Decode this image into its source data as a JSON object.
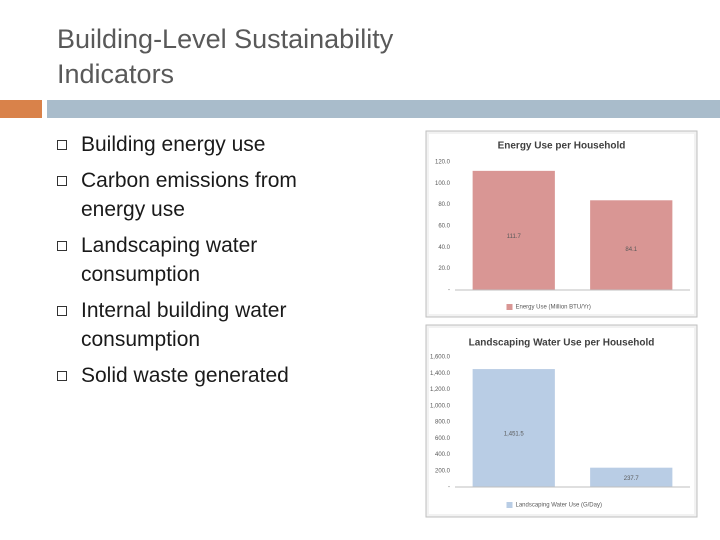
{
  "slide": {
    "title": "Building-Level Sustainability Indicators",
    "bullets": [
      "Building energy use",
      "Carbon emissions from energy use",
      "Landscaping water consumption",
      "Internal building water consumption",
      "Solid waste generated"
    ]
  },
  "chart_data": [
    {
      "type": "bar",
      "title": "Energy Use  per Household",
      "categories": [
        null,
        null
      ],
      "series": [
        {
          "name": "Energy Use (Million BTU/Yr)",
          "color": "#d99694",
          "values": [
            111.7,
            84.1
          ],
          "value_labels": [
            "111.7",
            "84.1"
          ]
        }
      ],
      "ylim": [
        0,
        120
      ],
      "yticks": [
        {
          "value": 0,
          "label": "-"
        },
        {
          "value": 20,
          "label": "20.0"
        },
        {
          "value": 40,
          "label": "40.0"
        },
        {
          "value": 60,
          "label": "60.0"
        },
        {
          "value": 80,
          "label": "80.0"
        },
        {
          "value": 100,
          "label": "100.0"
        },
        {
          "value": 120,
          "label": "120.0"
        }
      ],
      "grid": false,
      "legend": "bottom"
    },
    {
      "type": "bar",
      "title": "Landscaping Water Use per Household",
      "categories": [
        null,
        null
      ],
      "series": [
        {
          "name": "Landscaping Water Use (G/Day)",
          "color": "#b9cde5",
          "values": [
            1451.5,
            237.7
          ],
          "value_labels": [
            "1,451.5",
            "237.7"
          ]
        }
      ],
      "ylim": [
        0,
        1600
      ],
      "yticks": [
        {
          "value": 0,
          "label": "-"
        },
        {
          "value": 200,
          "label": "200.0"
        },
        {
          "value": 400,
          "label": "400.0"
        },
        {
          "value": 600,
          "label": "600.0"
        },
        {
          "value": 800,
          "label": "800.0"
        },
        {
          "value": 1000,
          "label": "1,000.0"
        },
        {
          "value": 1200,
          "label": "1,200.0"
        },
        {
          "value": 1400,
          "label": "1,400.0"
        },
        {
          "value": 1600,
          "label": "1,600.0"
        }
      ],
      "grid": false,
      "legend": "bottom"
    }
  ]
}
